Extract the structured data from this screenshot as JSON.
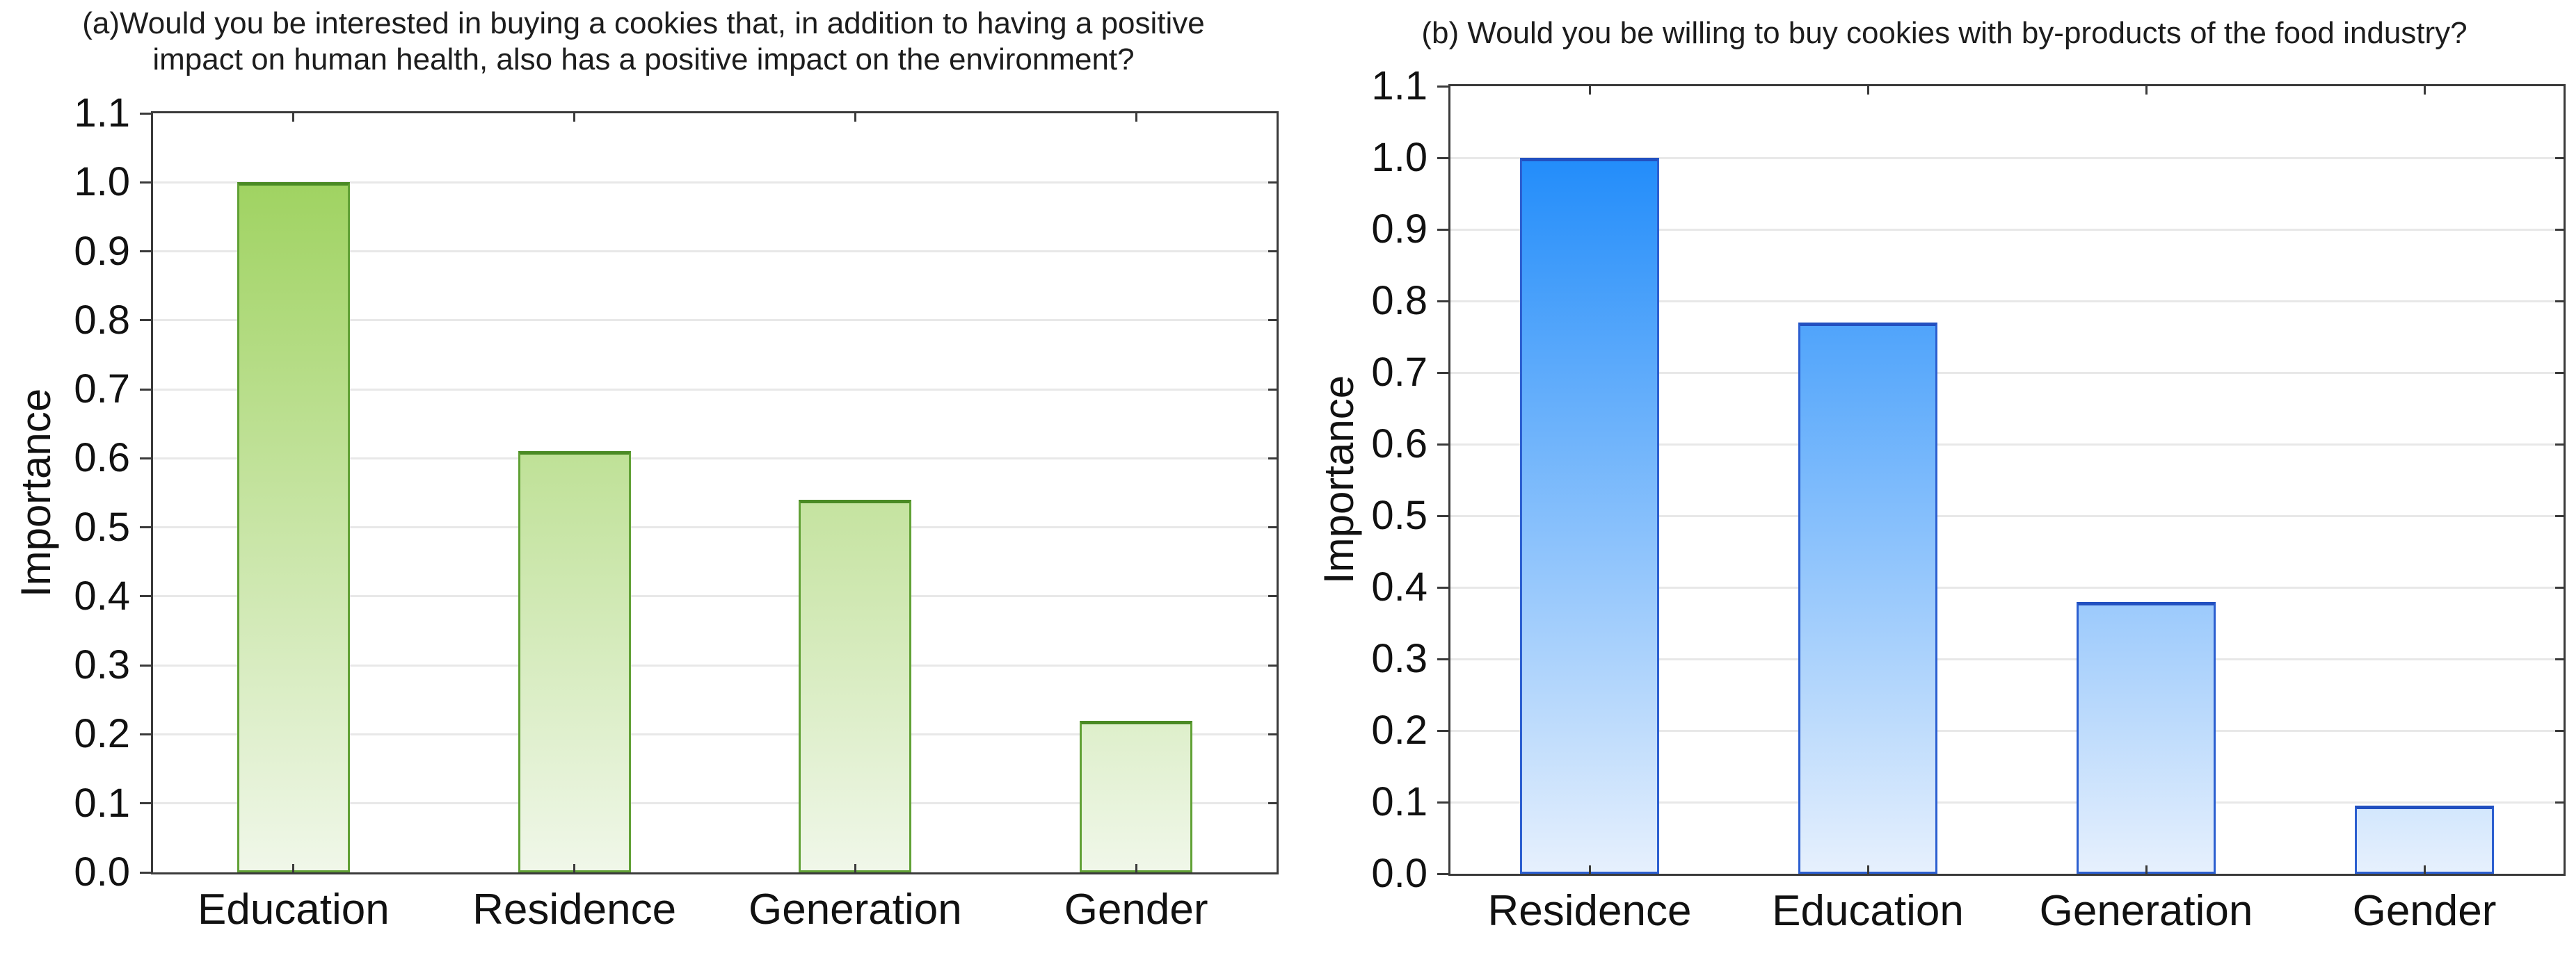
{
  "chart_data": [
    {
      "type": "bar",
      "panel_label": "(a)",
      "title": "(a)Would you be interested in buying a cookies that, in addition to having a positive impact on human health, also has a positive impact on the environment?",
      "title_lines": [
        "(a)Would you be interested in buying a cookies that, in addition to having a positive",
        "impact on human health, also has a positive impact on the environment?"
      ],
      "categories": [
        "Education",
        "Residence",
        "Generation",
        "Gender"
      ],
      "values": [
        1.0,
        0.61,
        0.54,
        0.22
      ],
      "xlabel": "",
      "ylabel": "Importance",
      "ylim": [
        0.0,
        1.1
      ],
      "yticks": [
        "0.0",
        "0.1",
        "0.2",
        "0.3",
        "0.4",
        "0.5",
        "0.6",
        "0.7",
        "0.8",
        "0.9",
        "1.0",
        "1.1"
      ],
      "grid": "horizontal",
      "legend": "none",
      "colors": {
        "fill_top": "#98cf55",
        "fill_bottom": "#f0f7e9",
        "border": "#61a136",
        "border_top": "#4a8a24",
        "gridline": "#e8e8e8",
        "axis": "#3a3a3a"
      }
    },
    {
      "type": "bar",
      "panel_label": "(b)",
      "title": "(b) Would you be willing to buy cookies with by-products of the food industry?",
      "title_lines": [
        "(b) Would you be willing to buy cookies with by-products of the food industry?"
      ],
      "categories": [
        "Residence",
        "Education",
        "Generation",
        "Gender"
      ],
      "values": [
        1.0,
        0.77,
        0.38,
        0.095
      ],
      "xlabel": "",
      "ylabel": "Importance",
      "ylim": [
        0.0,
        1.1
      ],
      "yticks": [
        "0.0",
        "0.1",
        "0.2",
        "0.3",
        "0.4",
        "0.5",
        "0.6",
        "0.7",
        "0.8",
        "0.9",
        "1.0",
        "1.1"
      ],
      "grid": "horizontal",
      "legend": "none",
      "colors": {
        "fill_top": "#0f83fa",
        "fill_bottom": "#e6f0fd",
        "border": "#2c5fd0",
        "border_top": "#2250c0",
        "gridline": "#e8e8e8",
        "axis": "#3a3a3a"
      }
    }
  ]
}
